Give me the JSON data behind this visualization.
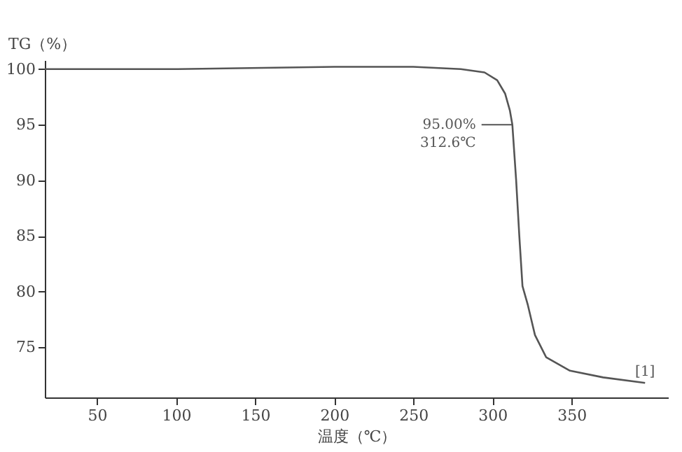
{
  "chart_data": {
    "type": "line",
    "xlabel": "温度（℃）",
    "ylabel": "TG（%）",
    "x": [
      17,
      100,
      200,
      250,
      280,
      295,
      303,
      308,
      311,
      312.6,
      315,
      317,
      319,
      322.4,
      326.9,
      334,
      349,
      370,
      396.5
    ],
    "series": [
      {
        "color": "#555555",
        "values": [
          100.0,
          100.0,
          100.2,
          100.2,
          100.0,
          99.7,
          99.0,
          97.8,
          96.3,
          95.0,
          90.0,
          85.0,
          80.5,
          78.8,
          76.1,
          74.1,
          72.9,
          72.3,
          71.8
        ]
      }
    ],
    "xlim": [
      17,
      411
    ],
    "ylim": [
      70.5,
      100.8
    ],
    "xticks": [
      50,
      100,
      150,
      200,
      250,
      300,
      350
    ],
    "yticks": [
      75,
      80,
      85,
      90,
      95,
      100
    ],
    "grid": false,
    "marker": "none",
    "line_style": "solid",
    "annotations": [
      {
        "text": "95.00%\n312.6℃",
        "x": 312.6,
        "y": 95
      },
      {
        "text": "[1]",
        "x": 396.5,
        "y": 71.8
      }
    ]
  }
}
